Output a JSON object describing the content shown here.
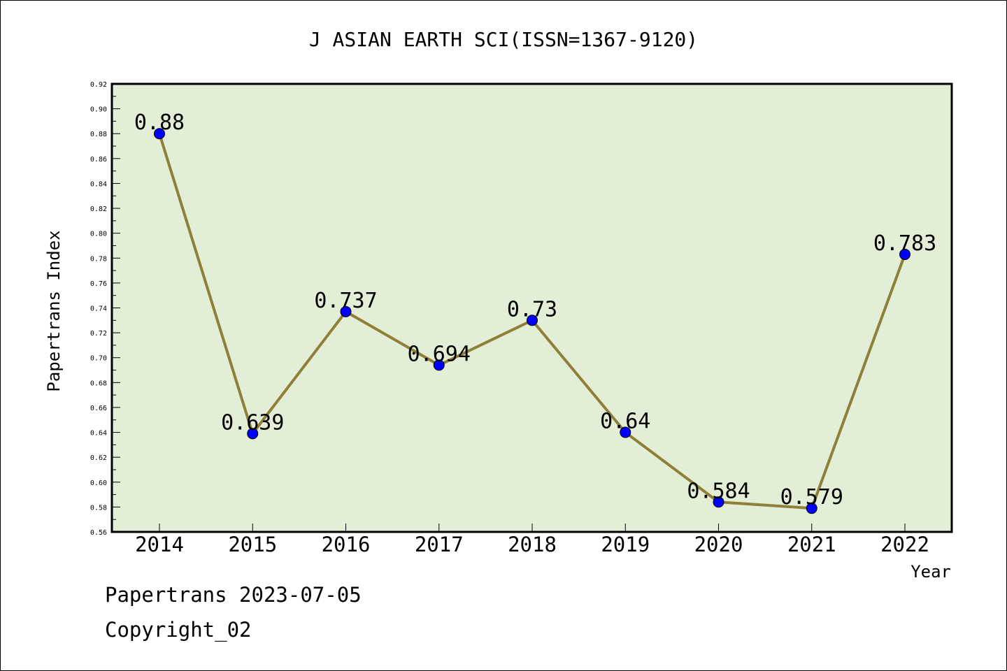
{
  "chart_data": {
    "type": "line",
    "title": "J ASIAN EARTH SCI(ISSN=1367-9120)",
    "xlabel": "Year",
    "ylabel": "Papertrans Index",
    "categories": [
      "2014",
      "2015",
      "2016",
      "2017",
      "2018",
      "2019",
      "2020",
      "2021",
      "2022"
    ],
    "series": [
      {
        "values": [
          0.88,
          0.639,
          0.737,
          0.694,
          0.73,
          0.64,
          0.584,
          0.579,
          0.783
        ]
      }
    ],
    "data_labels": [
      "0.88",
      "0.639",
      "0.737",
      "0.694",
      "0.73",
      "0.64",
      "0.584",
      "0.579",
      "0.783"
    ],
    "ylim": [
      0.56,
      0.92
    ],
    "ytick_labels": [
      "0.56",
      "0.58",
      "0.60",
      "0.62",
      "0.64",
      "0.66",
      "0.68",
      "0.70",
      "0.72",
      "0.74",
      "0.76",
      "0.78",
      "0.80",
      "0.82",
      "0.84",
      "0.86",
      "0.88",
      "0.90",
      "0.92"
    ],
    "grid": false,
    "colors": {
      "plot_background": "#e2efd6",
      "line": "#8f7f38",
      "marker": "#0000ff"
    }
  },
  "footer": {
    "line1": "Papertrans 2023-07-05",
    "line2": "Copyright_02"
  }
}
